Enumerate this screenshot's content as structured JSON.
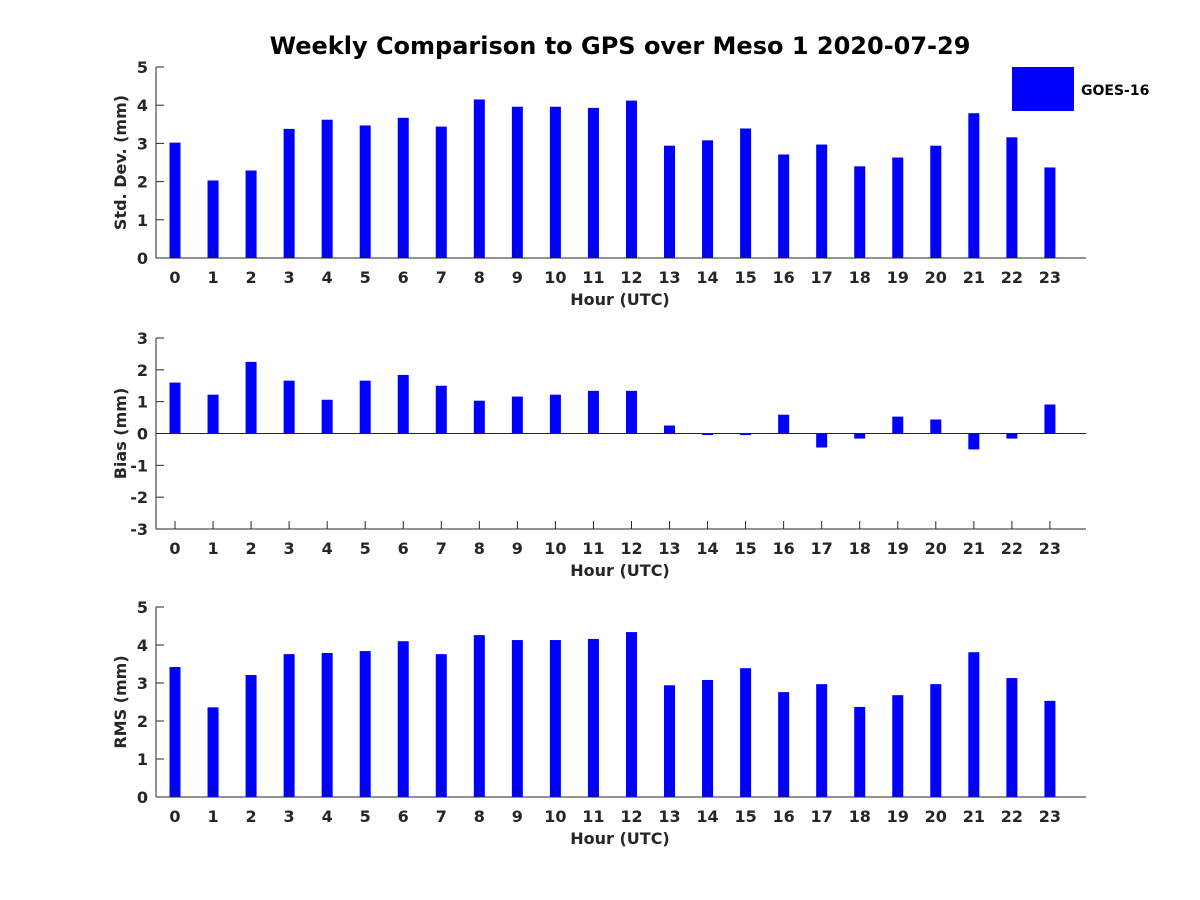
{
  "title": "Weekly Comparison to GPS over Meso 1 2020-07-29",
  "legend": {
    "label": "GOES-16",
    "color": "#0000ff",
    "placement": "top-right"
  },
  "chart_data": [
    {
      "type": "bar",
      "categories": [
        "0",
        "1",
        "2",
        "3",
        "4",
        "5",
        "6",
        "7",
        "8",
        "9",
        "10",
        "11",
        "12",
        "13",
        "14",
        "15",
        "16",
        "17",
        "18",
        "19",
        "20",
        "21",
        "22",
        "23"
      ],
      "series": [
        {
          "name": "GOES-16",
          "color": "#0000ff",
          "values": [
            3.02,
            2.03,
            2.29,
            3.38,
            3.62,
            3.47,
            3.67,
            3.44,
            4.15,
            3.96,
            3.96,
            3.93,
            4.12,
            2.94,
            3.08,
            3.39,
            2.71,
            2.97,
            2.4,
            2.63,
            2.94,
            3.79,
            3.16,
            2.37
          ]
        }
      ],
      "xlabel": "Hour (UTC)",
      "ylabel": "Std. Dev. (mm)",
      "ylim": [
        0,
        5
      ],
      "yticks": [
        "0",
        "1",
        "2",
        "3",
        "4",
        "5"
      ],
      "grid": false
    },
    {
      "type": "bar",
      "categories": [
        "0",
        "1",
        "2",
        "3",
        "4",
        "5",
        "6",
        "7",
        "8",
        "9",
        "10",
        "11",
        "12",
        "13",
        "14",
        "15",
        "16",
        "17",
        "18",
        "19",
        "20",
        "21",
        "22",
        "23"
      ],
      "series": [
        {
          "name": "GOES-16",
          "color": "#0000ff",
          "values": [
            1.6,
            1.22,
            2.25,
            1.66,
            1.06,
            1.66,
            1.84,
            1.5,
            1.03,
            1.16,
            1.22,
            1.34,
            1.34,
            0.25,
            -0.05,
            -0.05,
            0.59,
            -0.44,
            -0.16,
            0.53,
            0.44,
            -0.5,
            -0.16,
            0.91
          ]
        }
      ],
      "xlabel": "Hour (UTC)",
      "ylabel": "Bias (mm)",
      "ylim": [
        -3,
        3
      ],
      "yticks": [
        "-3",
        "-2",
        "-1",
        "0",
        "1",
        "2",
        "3"
      ],
      "grid": false
    },
    {
      "type": "bar",
      "categories": [
        "0",
        "1",
        "2",
        "3",
        "4",
        "5",
        "6",
        "7",
        "8",
        "9",
        "10",
        "11",
        "12",
        "13",
        "14",
        "15",
        "16",
        "17",
        "18",
        "19",
        "20",
        "21",
        "22",
        "23"
      ],
      "series": [
        {
          "name": "GOES-16",
          "color": "#0000ff",
          "values": [
            3.42,
            2.36,
            3.21,
            3.76,
            3.79,
            3.84,
            4.1,
            3.76,
            4.26,
            4.13,
            4.13,
            4.16,
            4.34,
            2.94,
            3.08,
            3.39,
            2.76,
            2.97,
            2.37,
            2.68,
            2.97,
            3.81,
            3.13,
            2.53
          ]
        }
      ],
      "xlabel": "Hour (UTC)",
      "ylabel": "RMS (mm)",
      "ylim": [
        0,
        5
      ],
      "yticks": [
        "0",
        "1",
        "2",
        "3",
        "4",
        "5"
      ],
      "grid": false
    }
  ]
}
